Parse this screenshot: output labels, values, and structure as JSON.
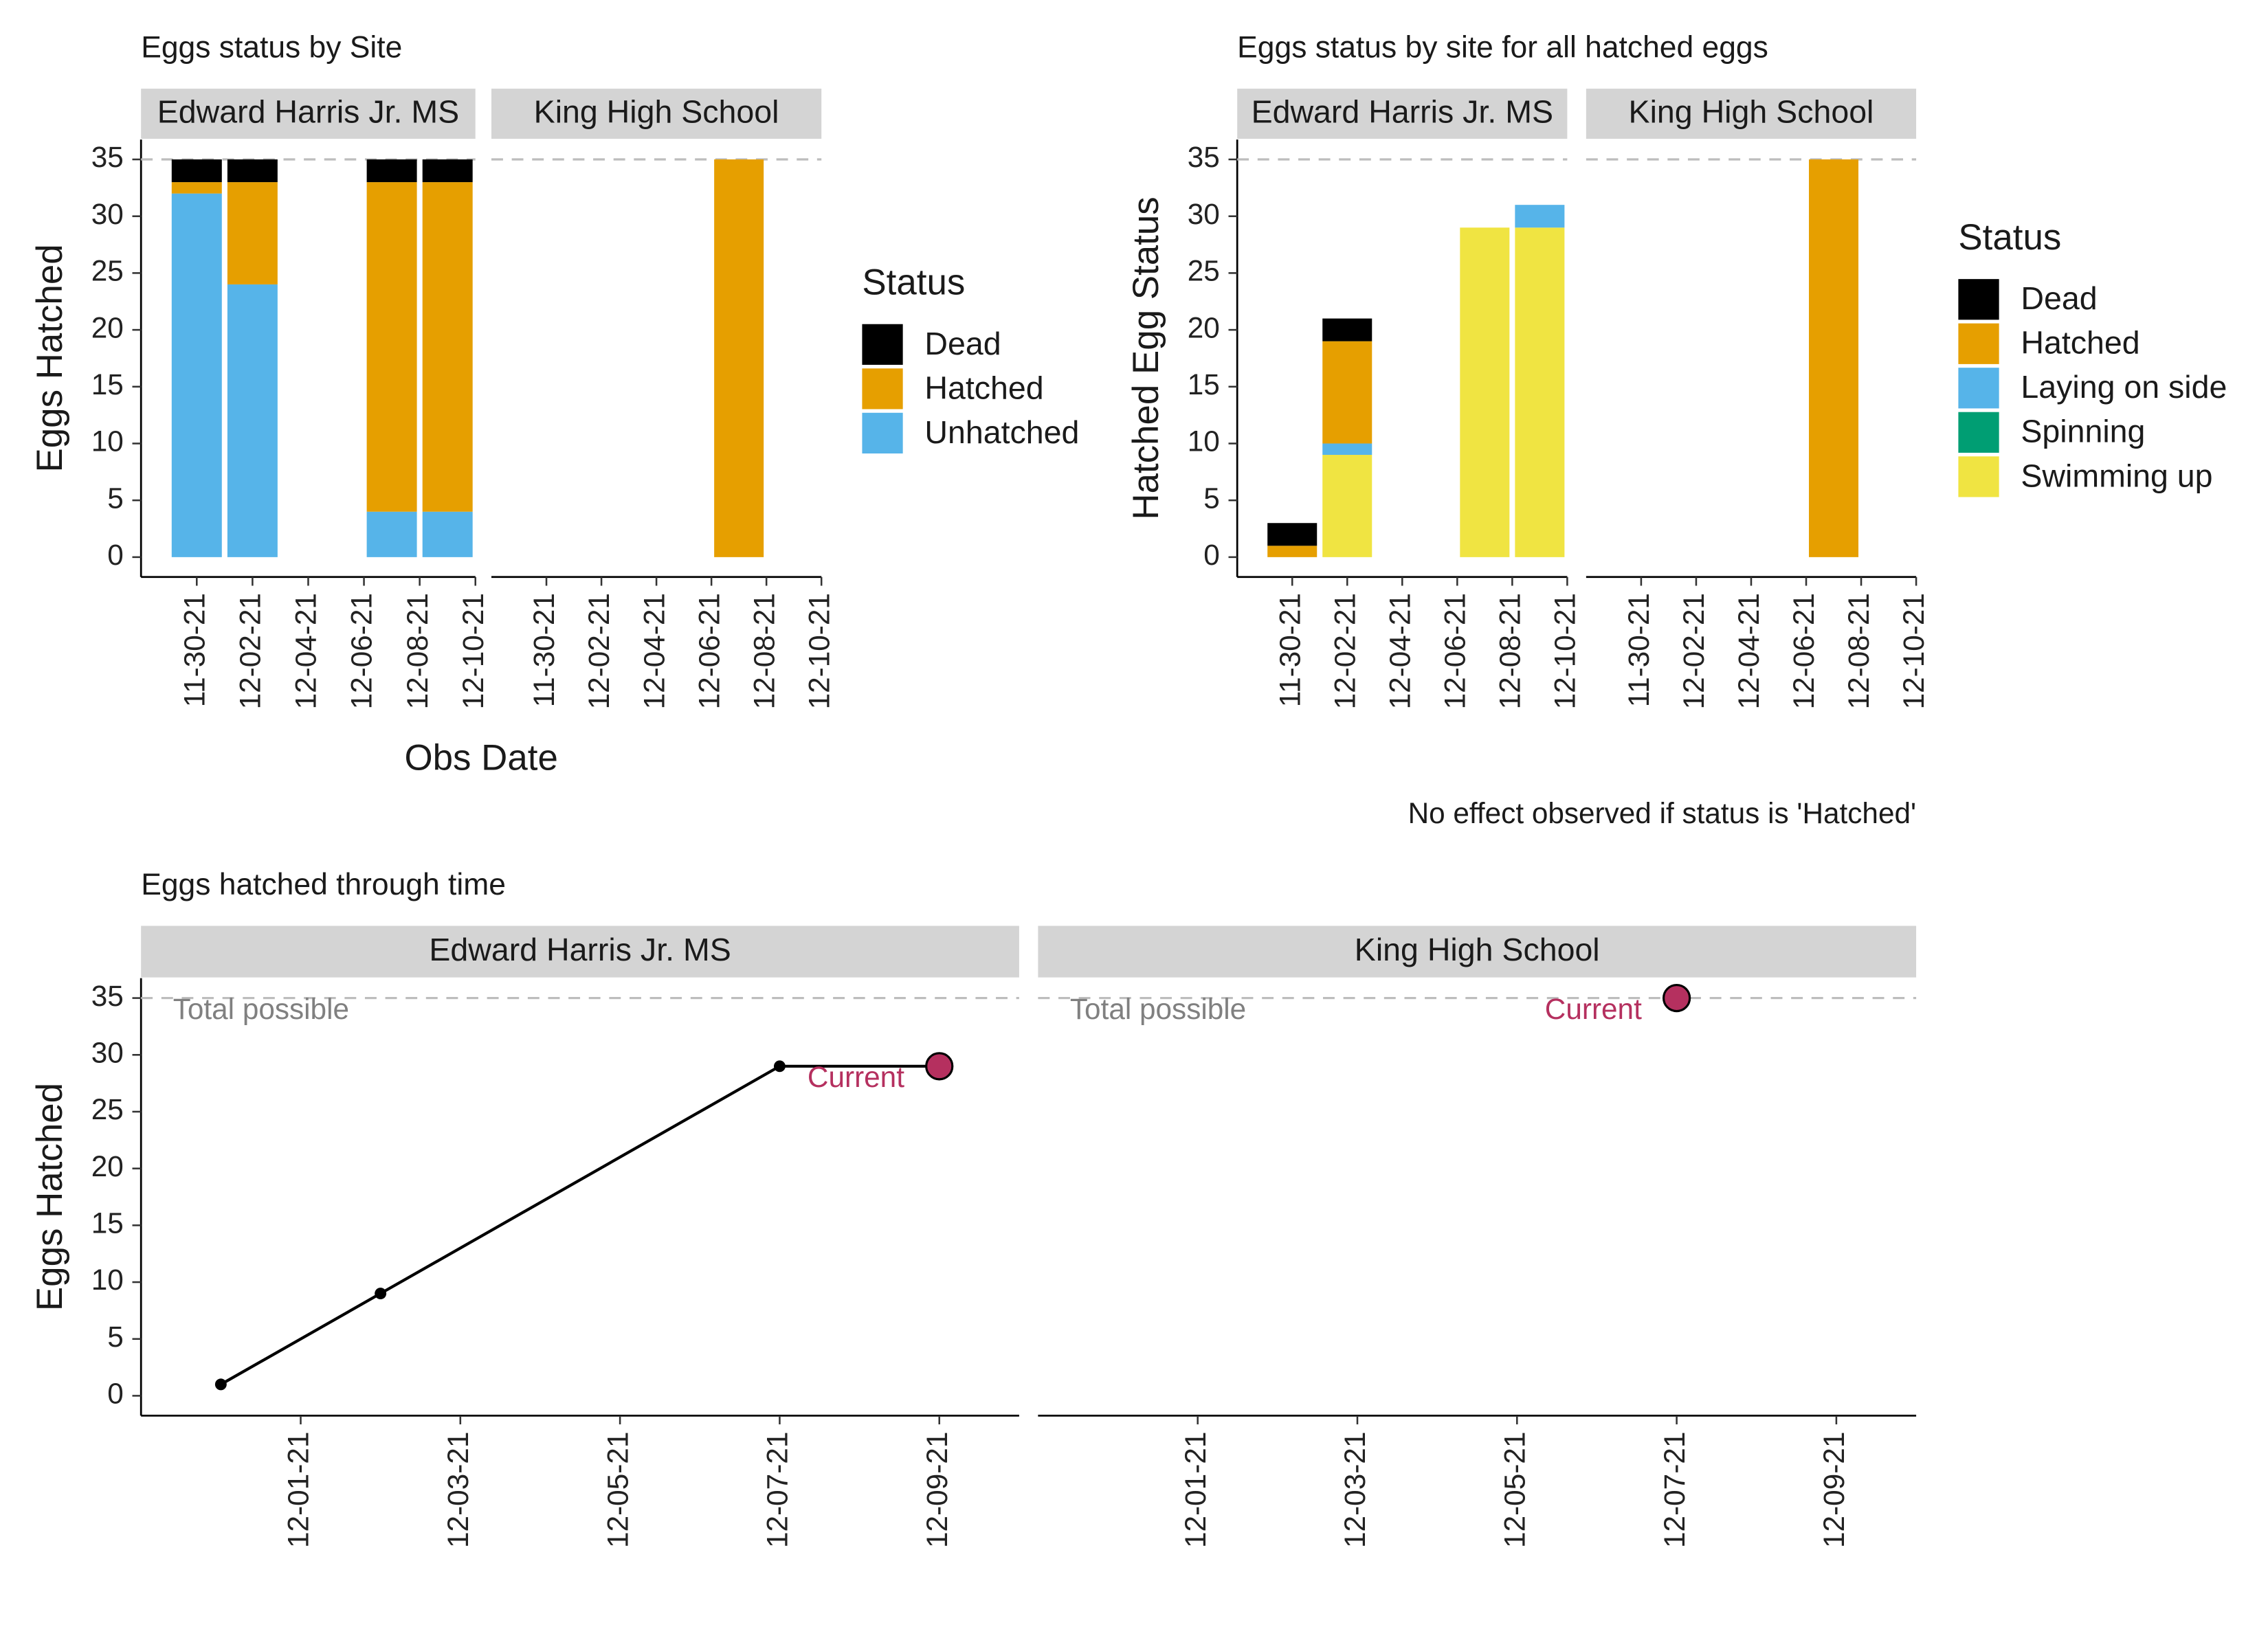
{
  "chart_data": [
    {
      "type": "bar",
      "stacked": true,
      "title": "Eggs status by Site",
      "facets": [
        "Edward Harris Jr. MS",
        "King High School"
      ],
      "panels": [
        0,
        0,
        0,
        0,
        1
      ],
      "x": [
        "11-30-21",
        "12-02-21",
        "12-07-21",
        "12-09-21",
        "12-07-21"
      ],
      "xlim": [
        "11-28-21",
        "12-10-21"
      ],
      "xticks": [
        "11-30-21",
        "12-02-21",
        "12-04-21",
        "12-06-21",
        "12-08-21",
        "12-10-21"
      ],
      "ylim": [
        -1.75,
        36.75
      ],
      "yticks": [
        0,
        5,
        10,
        15,
        20,
        25,
        30,
        35
      ],
      "hline": 35,
      "xlabel": "Obs Date",
      "ylabel": "Eggs Hatched",
      "legend_title": "Status",
      "series": [
        {
          "name": "Dead",
          "color": "#000000",
          "values": [
            2,
            2,
            2,
            2,
            0
          ]
        },
        {
          "name": "Hatched",
          "color": "#E69F00",
          "values": [
            1,
            9,
            29,
            29,
            35
          ]
        },
        {
          "name": "Unhatched",
          "color": "#56B4E9",
          "values": [
            32,
            24,
            4,
            4,
            0
          ]
        }
      ]
    },
    {
      "type": "bar",
      "stacked": true,
      "title": "Eggs status by site for all hatched eggs",
      "facets": [
        "Edward Harris Jr. MS",
        "King High School"
      ],
      "panels": [
        0,
        0,
        0,
        0,
        1
      ],
      "x": [
        "11-30-21",
        "12-02-21",
        "12-07-21",
        "12-09-21",
        "12-07-21"
      ],
      "xlim": [
        "11-28-21",
        "12-10-21"
      ],
      "xticks": [
        "11-30-21",
        "12-02-21",
        "12-04-21",
        "12-06-21",
        "12-08-21",
        "12-10-21"
      ],
      "ylim": [
        -1.75,
        36.75
      ],
      "yticks": [
        0,
        5,
        10,
        15,
        20,
        25,
        30,
        35
      ],
      "hline": 35,
      "ylabel": "Hatched Egg Status",
      "legend_title": "Status",
      "caption": "No effect observed if status is 'Hatched'",
      "series": [
        {
          "name": "Dead",
          "color": "#000000",
          "values": [
            2,
            2,
            0,
            0,
            0
          ]
        },
        {
          "name": "Hatched",
          "color": "#E69F00",
          "values": [
            1,
            9,
            0,
            0,
            35
          ]
        },
        {
          "name": "Laying on side",
          "color": "#56B4E9",
          "values": [
            0,
            1,
            0,
            2,
            0
          ]
        },
        {
          "name": "Spinning",
          "color": "#009E73",
          "values": [
            0,
            0,
            0,
            0,
            0
          ]
        },
        {
          "name": "Swimming up",
          "color": "#F0E442",
          "values": [
            0,
            9,
            29,
            29,
            0
          ]
        }
      ]
    },
    {
      "type": "line",
      "title": "Eggs hatched through time",
      "facets": [
        "Edward Harris Jr. MS",
        "King High School"
      ],
      "panels": [
        0,
        0,
        0,
        0,
        1
      ],
      "x": [
        "11-30-21",
        "12-02-21",
        "12-07-21",
        "12-09-21",
        "12-07-21"
      ],
      "values": [
        1,
        9,
        29,
        29,
        35
      ],
      "current": [
        false,
        false,
        false,
        true,
        true
      ],
      "current_label": "Current",
      "current_color": "#B5305F",
      "color": "#000000",
      "xlim": [
        "11-29-21",
        "12-10-21"
      ],
      "xticks": [
        "12-01-21",
        "12-03-21",
        "12-05-21",
        "12-07-21",
        "12-09-21"
      ],
      "ylim": [
        -1.75,
        36.75
      ],
      "yticks": [
        0,
        5,
        10,
        15,
        20,
        25,
        30,
        35
      ],
      "hline": 35,
      "hline_label": "Total possible",
      "ylabel": "Eggs Hatched"
    }
  ]
}
